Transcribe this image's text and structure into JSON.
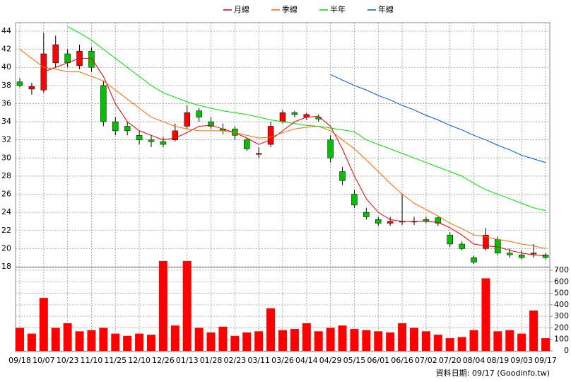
{
  "chart_data": {
    "type": "candlestick",
    "categories": [
      "09/18",
      null,
      "10/07",
      null,
      "10/23",
      null,
      "11/10",
      null,
      "11/25",
      null,
      "12/10",
      null,
      "12/26",
      null,
      "01/13",
      null,
      "01/28",
      null,
      "02/23",
      null,
      "03/11",
      null,
      "03/26",
      null,
      "04/14",
      null,
      "04/29",
      null,
      "05/15",
      null,
      "06/01",
      null,
      "06/16",
      null,
      "07/02",
      null,
      "07/20",
      null,
      "08/04",
      null,
      "08/19",
      null,
      "09/03",
      null,
      "09/17"
    ],
    "open": [
      38.4,
      37.6,
      37.5,
      40.5,
      41.5,
      40.2,
      41.8,
      38,
      34,
      33.5,
      32.5,
      32,
      31.8,
      32,
      33.5,
      35.2,
      34,
      33.2,
      33.2,
      32,
      30.4,
      31.5,
      34,
      35,
      34.5,
      34.5,
      32,
      28.5,
      26,
      24,
      23.2,
      22.8,
      23,
      23,
      23.2,
      23.4,
      21.5,
      20.5,
      19,
      20,
      21,
      19.5,
      19.3,
      19.4,
      19.3
    ],
    "high": [
      38.8,
      38.3,
      43.8,
      43.5,
      42,
      42.5,
      42.2,
      38.5,
      34.5,
      34,
      33,
      32.5,
      32.3,
      33.8,
      35.8,
      35.5,
      34.5,
      33.8,
      33.5,
      32.2,
      31.2,
      34,
      35.3,
      35.2,
      35,
      34.8,
      32.5,
      29,
      26.5,
      24.5,
      23.5,
      23.5,
      26,
      23.5,
      23.5,
      23.5,
      21.8,
      20.8,
      19.2,
      22.3,
      21.3,
      20,
      19.8,
      20.5,
      19.5
    ],
    "low": [
      37.8,
      37,
      37.2,
      40,
      40,
      39.8,
      39.5,
      33.5,
      32.5,
      32.5,
      31.5,
      31.2,
      31.2,
      31.8,
      33.2,
      34,
      33.2,
      32.6,
      32,
      30.8,
      30,
      31.2,
      33.8,
      34.5,
      34.2,
      34,
      29.5,
      27,
      24.5,
      23.2,
      22.5,
      22.5,
      22.6,
      22.6,
      22.8,
      22.5,
      20.2,
      19.8,
      18.3,
      19.8,
      19.3,
      19,
      18.8,
      19,
      18.8
    ],
    "close": [
      38,
      37.9,
      41.5,
      42.5,
      40.5,
      41.8,
      40,
      34,
      33,
      33,
      32,
      31.8,
      31.5,
      33,
      35,
      34.5,
      33.5,
      33,
      32.5,
      31,
      30.5,
      33.5,
      35,
      34.8,
      34.8,
      34.3,
      30,
      27.5,
      24.8,
      23.5,
      22.8,
      23,
      23,
      23,
      23,
      22.8,
      20.5,
      20,
      18.5,
      21.5,
      19.5,
      19.3,
      19,
      19.5,
      19
    ],
    "up_color": "#ff0000",
    "down_color": "#00c000",
    "series": [
      {
        "name": "月線",
        "color": "#dd0000",
        "values": [
          null,
          null,
          39.5,
          40,
          40.5,
          41,
          41,
          39,
          36,
          34,
          33,
          32.5,
          32,
          32.2,
          32.8,
          33.5,
          33.6,
          33.2,
          32.8,
          32.2,
          31.5,
          32,
          33,
          34,
          34.5,
          34.6,
          33.5,
          31,
          28,
          25.5,
          24,
          23.2,
          23,
          23,
          23,
          22.9,
          22.3,
          21.5,
          20.5,
          20.3,
          20.2,
          19.8,
          19.5,
          19.3,
          19.2
        ]
      },
      {
        "name": "季線",
        "color": "#ff6600",
        "values": [
          42,
          41,
          40,
          39.8,
          39.5,
          39.5,
          39,
          38.5,
          37.5,
          36.5,
          35.5,
          34.5,
          34,
          33.5,
          33.2,
          33,
          33,
          33,
          32.8,
          32.5,
          32.2,
          32.3,
          32.8,
          33.2,
          33.4,
          33.5,
          33,
          32,
          31,
          29.8,
          28.5,
          27.2,
          26,
          25,
          24.3,
          23.6,
          22.8,
          22.2,
          21.5,
          21.3,
          21,
          20.8,
          20.5,
          20.3,
          20
        ]
      },
      {
        "name": "半年",
        "color": "#00dd00",
        "values": [
          null,
          null,
          null,
          null,
          44.5,
          43.8,
          43,
          42,
          41,
          40,
          39,
          38,
          37.2,
          36.7,
          36.2,
          35.8,
          35.5,
          35.2,
          35,
          34.8,
          34.5,
          34.2,
          34,
          33.8,
          33.6,
          33.5,
          33.3,
          33.1,
          32.9,
          32,
          31.5,
          31,
          30.5,
          30,
          29.5,
          29,
          28.5,
          28,
          27.2,
          26.5,
          26,
          25.5,
          25,
          24.5,
          24.2
        ]
      },
      {
        "name": "年線",
        "color": "#0055cc",
        "values": [
          null,
          null,
          null,
          null,
          null,
          null,
          null,
          null,
          null,
          null,
          null,
          null,
          null,
          null,
          null,
          null,
          null,
          null,
          null,
          null,
          null,
          null,
          null,
          null,
          null,
          null,
          39.2,
          38.6,
          38,
          37.5,
          36.9,
          36.4,
          35.8,
          35.3,
          34.7,
          34.2,
          33.6,
          33.1,
          32.5,
          32,
          31.4,
          30.9,
          30.3,
          29.9,
          29.5
        ]
      }
    ],
    "volume": {
      "color": "#ff0000",
      "values": [
        200,
        150,
        460,
        200,
        240,
        170,
        180,
        200,
        150,
        130,
        150,
        140,
        780,
        220,
        780,
        200,
        160,
        210,
        130,
        160,
        170,
        370,
        180,
        190,
        240,
        170,
        200,
        220,
        190,
        180,
        170,
        160,
        240,
        200,
        170,
        140,
        110,
        120,
        180,
        630,
        170,
        180,
        150,
        350,
        110
      ]
    },
    "ylim": [
      18,
      44
    ],
    "yticks": [
      18,
      20,
      22,
      24,
      26,
      28,
      30,
      32,
      34,
      36,
      38,
      40,
      42,
      44
    ],
    "y2lim": [
      0,
      700
    ],
    "y2ticks": [
      0,
      100,
      200,
      300,
      400,
      500,
      600,
      700
    ],
    "grid": true,
    "legend": "top",
    "footer": "資料日期: 09/17 (Goodinfo.tw)"
  }
}
